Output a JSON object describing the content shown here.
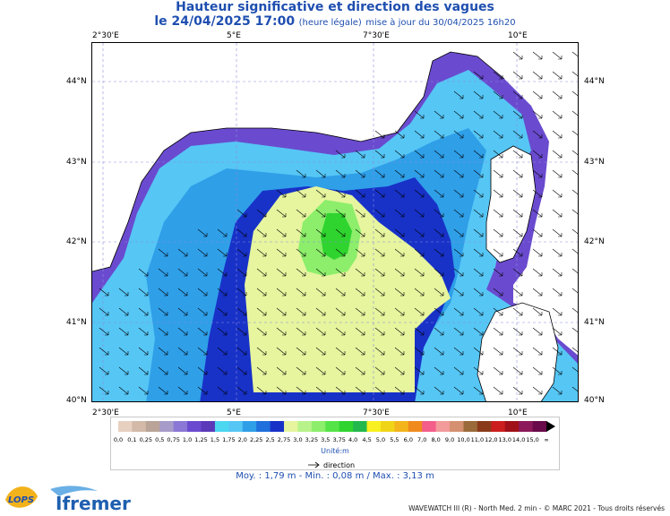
{
  "title": {
    "line1": "Hauteur significative et direction des vagues",
    "date": "le 24/04/2025 17:00",
    "legal": "(heure légale)",
    "update": "mise à jour du 30/04/2025 16h20"
  },
  "axes": {
    "x_ticks": [
      "2°30'E",
      "5°E",
      "7°30'E",
      "10°E"
    ],
    "y_ticks": [
      "44°N",
      "43°N",
      "42°N",
      "41°N",
      "40°N"
    ]
  },
  "scale": {
    "labels": [
      "0,0",
      "0,1",
      "0,25",
      "0,5",
      "0,75",
      "1,0",
      "1,25",
      "1,5",
      "1,75",
      "2,0",
      "2,25",
      "2,5",
      "2,75",
      "3,0",
      "3,25",
      "3,5",
      "3,75",
      "4,0",
      "4,5",
      "5,0",
      "5,5",
      "6,0",
      "7,0",
      "8,0",
      "9,0",
      "10,0",
      "11,0",
      "12,0",
      "13,0",
      "14,0",
      "15,0",
      "∞"
    ],
    "colors": [
      "#e8d0c0",
      "#d2b9a8",
      "#b9a497",
      "#a69bc9",
      "#8a77d6",
      "#6a4bcf",
      "#5a3ab8",
      "#4bd7f0",
      "#56c6f5",
      "#2f9fe8",
      "#1f6fdc",
      "#1832c8",
      "#e6f59e",
      "#b8f28a",
      "#8cee6b",
      "#55e447",
      "#2fd42f",
      "#23b84d",
      "#f8f020",
      "#f0d418",
      "#f3b41c",
      "#f08a1c",
      "#f45e8a",
      "#f39a9a",
      "#d49070",
      "#9a6a3a",
      "#8a3a1a",
      "#cc1e1e",
      "#a01018",
      "#8c1a5a",
      "#6a0a4a"
    ],
    "unit": "Unité:m",
    "direction_label": "direction"
  },
  "stats": {
    "text": "Moy. : 1,79 m   -   Min. : 0,08 m / Max. : 3,13 m"
  },
  "credit": "WAVEWATCH III (R) - North Med. 2 min - © MARC 2021 - Tous droits réservés",
  "logos": {
    "lops": "LOPS",
    "ifremer": "Ifremer"
  },
  "colors": {
    "title": "#1f4fb0",
    "land": "#ffffff",
    "grid": "#6a6ad0"
  }
}
